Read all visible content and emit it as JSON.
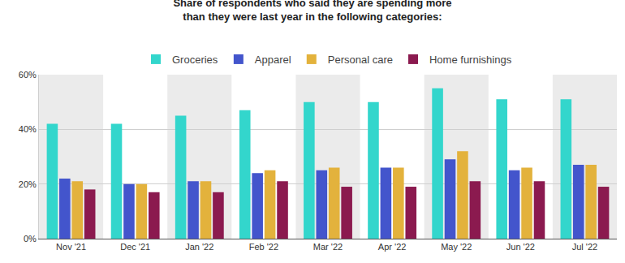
{
  "chart_data": {
    "type": "bar",
    "title": "Share of respondents who said they are spending more\nthan they were last year in the following categories:",
    "categories": [
      "Nov '21",
      "Dec '21",
      "Jan '22",
      "Feb '22",
      "Mar '22",
      "Apr '22",
      "May '22",
      "Jun '22",
      "Jul '22"
    ],
    "series": [
      {
        "name": "Groceries",
        "color": "#33d6cc",
        "values": [
          42,
          42,
          45,
          47,
          50,
          50,
          55,
          51,
          51
        ]
      },
      {
        "name": "Apparel",
        "color": "#4355cc",
        "values": [
          22,
          20,
          21,
          24,
          25,
          26,
          29,
          25,
          27
        ]
      },
      {
        "name": "Personal care",
        "color": "#e3b23c",
        "values": [
          21,
          20,
          21,
          25,
          26,
          26,
          32,
          26,
          27
        ]
      },
      {
        "name": "Home furnishings",
        "color": "#8b1a4f",
        "values": [
          18,
          17,
          17,
          21,
          19,
          19,
          21,
          21,
          19
        ]
      }
    ],
    "ylim": [
      0,
      60
    ],
    "yticks": [
      {
        "value": 0,
        "label": "0%"
      },
      {
        "value": 20,
        "label": "20%"
      },
      {
        "value": 40,
        "label": "40%"
      },
      {
        "value": 60,
        "label": "60%"
      }
    ],
    "grid": true,
    "legend": "top"
  }
}
